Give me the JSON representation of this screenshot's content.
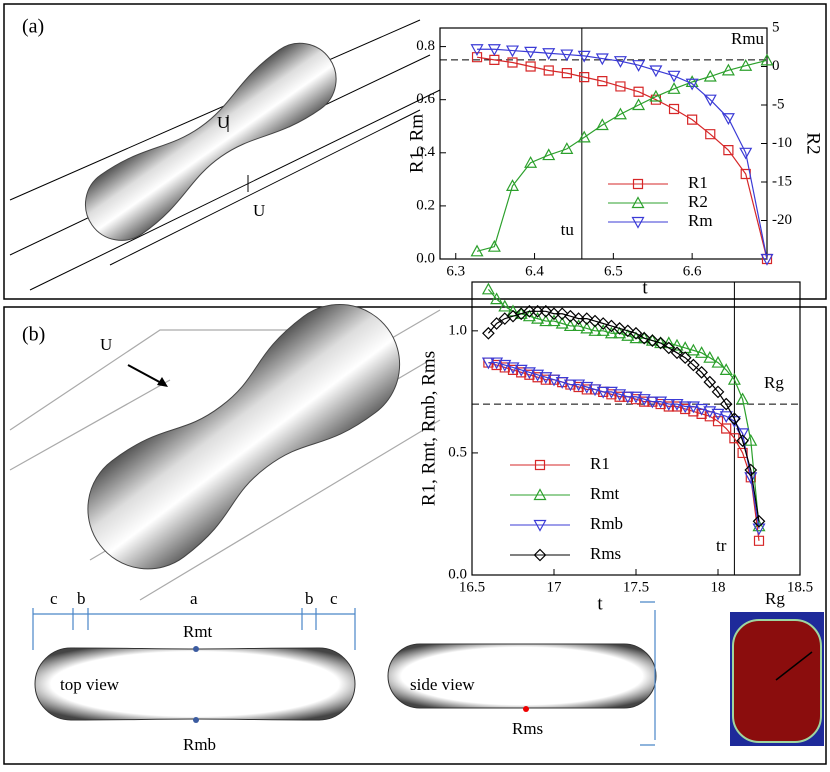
{
  "chart_data": [
    {
      "type": "line",
      "panel": "(a)",
      "xlabel": "t",
      "ylabel": "R1, Rm",
      "y2label": "R2",
      "xlim": [
        6.28,
        6.695
      ],
      "xticks": [
        6.3,
        6.4,
        6.5,
        6.6
      ],
      "ylim": [
        0,
        0.87
      ],
      "yticks": [
        {
          "value": 0,
          "label": "0.0"
        },
        0.2,
        0.4,
        0.6,
        0.8
      ],
      "y2lim": [
        -25,
        5
      ],
      "y2ticks": [
        5,
        0,
        -5,
        -10,
        -15,
        -20
      ],
      "legend": "lower right",
      "x": [
        6.327,
        6.349,
        6.372,
        6.395,
        6.418,
        6.441,
        6.463,
        6.486,
        6.509,
        6.532,
        6.554,
        6.577,
        6.6,
        6.623,
        6.646,
        6.668,
        6.695
      ],
      "series": [
        {
          "name": "R1",
          "color": "#d62728",
          "marker": "square",
          "values": [
            0.76,
            0.75,
            0.74,
            0.725,
            0.71,
            0.7,
            0.685,
            0.67,
            0.65,
            0.63,
            0.6,
            0.565,
            0.525,
            0.47,
            0.41,
            0.32,
            0
          ]
        },
        {
          "name": "R2",
          "color": "#2ca02c",
          "marker": "triangle",
          "axis": "y2",
          "values": [
            -24,
            -23.4,
            -15.5,
            -12.5,
            -11.5,
            -10.7,
            -9.2,
            -7.6,
            -6.2,
            -5,
            -3.9,
            -2.9,
            -2,
            -1.3,
            -0.5,
            0.1,
            0.8
          ]
        },
        {
          "name": "Rm",
          "color": "#3b3bd6",
          "marker": "triangle-down",
          "values": [
            0.79,
            0.79,
            0.785,
            0.78,
            0.775,
            0.77,
            0.765,
            0.755,
            0.745,
            0.73,
            0.71,
            0.69,
            0.66,
            0.6,
            0.53,
            0.4,
            0
          ]
        }
      ],
      "vline": {
        "value": 6.46,
        "label": "tu"
      },
      "hline": {
        "value": 0.75,
        "label": "Rmu"
      }
    },
    {
      "type": "line",
      "panel": "(b)",
      "xlabel": "t",
      "ylabel": "R1, Rmt, Rmb, Rms",
      "xlim": [
        16.5,
        18.5
      ],
      "xticks": [
        16.5,
        17,
        17.5,
        18,
        18.5
      ],
      "ylim": [
        0,
        1.2
      ],
      "yticks": [
        {
          "value": 0,
          "label": "0.0"
        },
        0.5,
        {
          "value": 1,
          "label": "1.0"
        }
      ],
      "legend": "lower left",
      "x": [
        16.6,
        16.65,
        16.7,
        16.75,
        16.8,
        16.85,
        16.9,
        16.95,
        17,
        17.05,
        17.1,
        17.15,
        17.2,
        17.25,
        17.3,
        17.35,
        17.4,
        17.45,
        17.5,
        17.55,
        17.6,
        17.65,
        17.7,
        17.75,
        17.8,
        17.85,
        17.9,
        17.95,
        18,
        18.05,
        18.1,
        18.15,
        18.2,
        18.25
      ],
      "series": [
        {
          "name": "R1",
          "color": "#d62728",
          "marker": "square",
          "values": [
            0.87,
            0.86,
            0.85,
            0.84,
            0.83,
            0.82,
            0.81,
            0.8,
            0.8,
            0.79,
            0.78,
            0.77,
            0.76,
            0.76,
            0.75,
            0.74,
            0.73,
            0.73,
            0.72,
            0.71,
            0.71,
            0.7,
            0.69,
            0.69,
            0.68,
            0.67,
            0.66,
            0.65,
            0.63,
            0.6,
            0.56,
            0.5,
            0.4,
            0.14
          ]
        },
        {
          "name": "Rmt",
          "color": "#2ca02c",
          "marker": "triangle",
          "values": [
            1.17,
            1.13,
            1.1,
            1.08,
            1.07,
            1.06,
            1.05,
            1.04,
            1.04,
            1.03,
            1.02,
            1.02,
            1.01,
            1,
            1,
            0.99,
            0.99,
            0.98,
            0.97,
            0.97,
            0.96,
            0.95,
            0.95,
            0.94,
            0.93,
            0.92,
            0.91,
            0.89,
            0.87,
            0.84,
            0.8,
            0.72,
            0.55,
            0.2
          ]
        },
        {
          "name": "Rmb",
          "color": "#3b3bd6",
          "marker": "triangle-down",
          "values": [
            0.87,
            0.87,
            0.86,
            0.85,
            0.84,
            0.83,
            0.82,
            0.81,
            0.8,
            0.79,
            0.78,
            0.78,
            0.77,
            0.76,
            0.75,
            0.75,
            0.74,
            0.73,
            0.73,
            0.72,
            0.71,
            0.71,
            0.7,
            0.7,
            0.69,
            0.69,
            0.68,
            0.67,
            0.66,
            0.65,
            0.63,
            0.58,
            0.4,
            0.19
          ]
        },
        {
          "name": "Rms",
          "color": "#000000",
          "marker": "diamond",
          "values": [
            0.99,
            1.03,
            1.05,
            1.06,
            1.07,
            1.08,
            1.08,
            1.08,
            1.07,
            1.07,
            1.06,
            1.05,
            1.05,
            1.04,
            1.03,
            1.02,
            1.01,
            1,
            0.99,
            0.97,
            0.96,
            0.95,
            0.93,
            0.91,
            0.89,
            0.86,
            0.83,
            0.79,
            0.75,
            0.7,
            0.64,
            0.55,
            0.43,
            0.22
          ]
        }
      ],
      "vline": {
        "value": 18.1,
        "label": "tr"
      },
      "hline": {
        "value": 0.7,
        "label": "Rg"
      }
    }
  ],
  "illustrations": {
    "a": {
      "flow_top": "U",
      "flow_bottom": "U"
    },
    "b": {
      "flow": "U",
      "dims": [
        "c",
        "b",
        "a",
        "b",
        "c"
      ],
      "top_label": "top view",
      "top_upper": "Rmt",
      "top_lower": "Rmb",
      "side_label": "side view",
      "side_point": "Rms",
      "section_label": "Rg"
    }
  }
}
